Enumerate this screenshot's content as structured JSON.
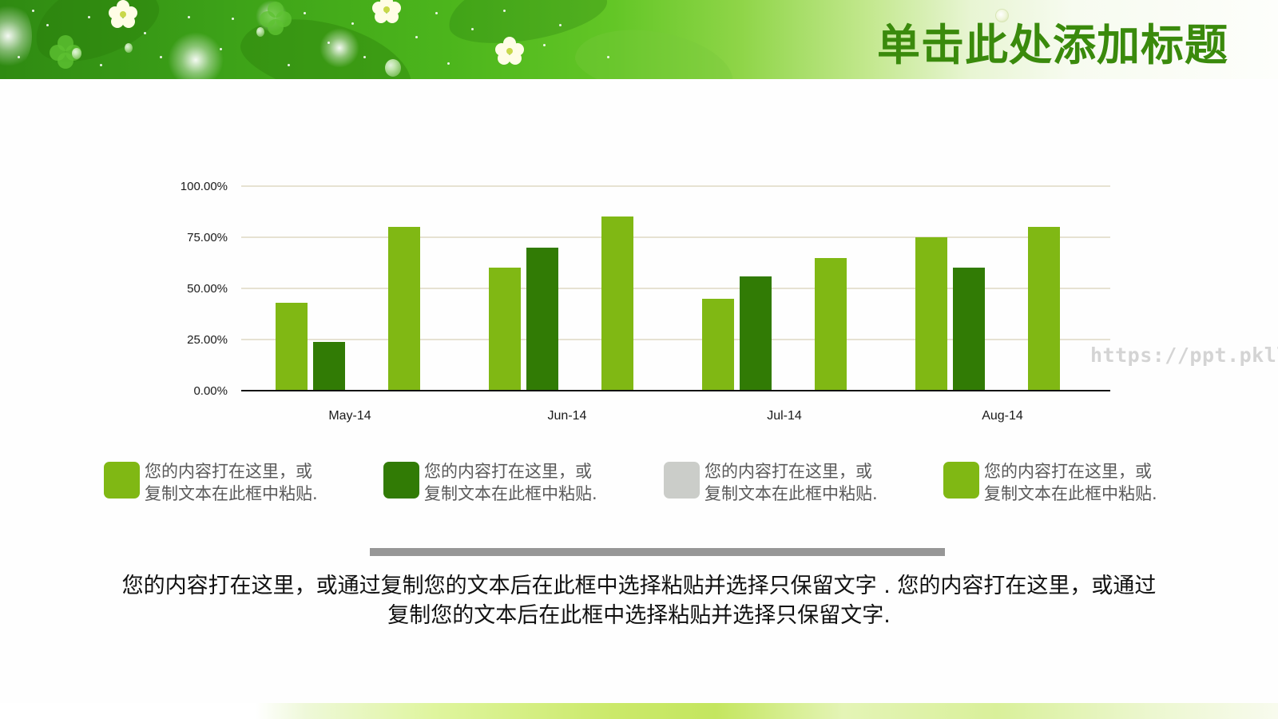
{
  "slide": {
    "title": "单击此处添加标题",
    "watermark": "https://ppt.pkll.de",
    "body_text": "您的内容打在这里，或通过复制您的文本后在此框中选择粘贴并选择只保留文字 . 您的内容打在这里，或通过复制您的文本后在此框中选择粘贴并选择只保留文字."
  },
  "legend": [
    {
      "color": "#80b814",
      "line1": "您的内容打在这里，或",
      "line2": "复制文本在此框中粘贴."
    },
    {
      "color": "#317b05",
      "line1": "您的内容打在这里，或",
      "line2": "复制文本在此框中粘贴."
    },
    {
      "color": "#cbcdc9",
      "line1": "您的内容打在这里，或",
      "line2": "复制文本在此框中粘贴."
    },
    {
      "color": "#80b814",
      "line1": "您的内容打在这里，或",
      "line2": "复制文本在此框中粘贴."
    }
  ],
  "colors": {
    "series1": "#80b814",
    "series2": "#317b05",
    "series3": "#cbcdc9",
    "series4": "#80b814",
    "title": "#3a8a0c",
    "gridline": "#e6e2d2",
    "divider": "#979797"
  },
  "chart_data": {
    "type": "bar",
    "title": "",
    "xlabel": "",
    "ylabel": "",
    "categories": [
      "May-14",
      "Jun-14",
      "Jul-14",
      "Aug-14"
    ],
    "series": [
      {
        "name": "您的内容打在这里，或复制文本在此框中粘贴. (1)",
        "color": "#80b814",
        "values": [
          0.43,
          0.6,
          0.45,
          0.75
        ]
      },
      {
        "name": "您的内容打在这里，或复制文本在此框中粘贴. (2)",
        "color": "#317b05",
        "values": [
          0.24,
          0.7,
          0.56,
          0.6
        ]
      },
      {
        "name": "您的内容打在这里，或复制文本在此框中粘贴. (3)",
        "color": "#cbcdc9",
        "values": [
          0,
          0,
          0,
          0
        ]
      },
      {
        "name": "您的内容打在这里，或复制文本在此框中粘贴. (4)",
        "color": "#80b814",
        "values": [
          0.8,
          0.85,
          0.65,
          0.8
        ]
      }
    ],
    "y_ticks": [
      "0.00%",
      "25.00%",
      "50.00%",
      "75.00%",
      "100.00%"
    ],
    "ylim": [
      0,
      1
    ],
    "grid": true,
    "legend_position": "bottom"
  }
}
